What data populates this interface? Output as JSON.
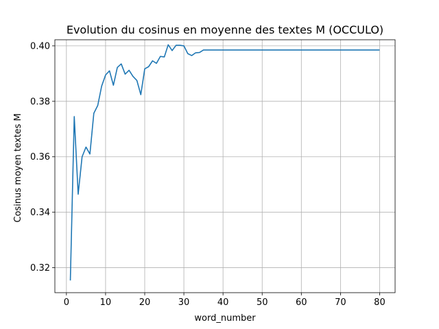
{
  "chart_data": {
    "type": "line",
    "title": "Evolution du cosinus en moyenne des textes M (OCCULO)",
    "xlabel": "word_number",
    "ylabel": "Cosinus moyen textes M",
    "xlim": [
      -2.95,
      83.95
    ],
    "ylim": [
      0.311,
      0.4022
    ],
    "xticks": [
      0,
      10,
      20,
      30,
      40,
      50,
      60,
      70,
      80
    ],
    "xtick_labels": [
      "0",
      "10",
      "20",
      "30",
      "40",
      "50",
      "60",
      "70",
      "80"
    ],
    "yticks": [
      0.32,
      0.34,
      0.36,
      0.38,
      0.4
    ],
    "ytick_labels": [
      "0.32",
      "0.34",
      "0.36",
      "0.38",
      "0.40"
    ],
    "grid": true,
    "line_color": "#1f77b4",
    "series": [
      {
        "x": [
          1,
          2,
          3,
          4,
          5,
          6,
          7,
          8,
          9,
          10,
          11,
          12,
          13,
          14,
          15,
          16,
          17,
          18,
          19,
          20,
          21,
          22,
          23,
          24,
          25,
          26,
          27,
          28,
          29,
          30,
          31,
          32,
          33,
          34,
          35,
          36,
          37,
          38,
          39,
          40,
          41,
          42,
          43,
          44,
          45,
          46,
          47,
          48,
          49,
          50,
          51,
          52,
          53,
          54,
          55,
          56,
          57,
          58,
          59,
          60,
          61,
          62,
          63,
          64,
          65,
          66,
          67,
          68,
          69,
          70,
          71,
          72,
          73,
          74,
          75,
          76,
          77,
          78,
          79,
          80
        ],
        "y": [
          0.3154,
          0.3745,
          0.3465,
          0.36,
          0.3635,
          0.361,
          0.3757,
          0.3785,
          0.3855,
          0.3895,
          0.391,
          0.3858,
          0.3922,
          0.3935,
          0.3898,
          0.3912,
          0.389,
          0.3875,
          0.3824,
          0.3917,
          0.3925,
          0.3946,
          0.3937,
          0.3962,
          0.396,
          0.4004,
          0.3983,
          0.4002,
          0.4002,
          0.4,
          0.3972,
          0.3965,
          0.3975,
          0.3976,
          0.3985,
          0.3985,
          0.3985,
          0.3985,
          0.3985,
          0.3985,
          0.3985,
          0.3985,
          0.3985,
          0.3985,
          0.3985,
          0.3985,
          0.3985,
          0.3985,
          0.3985,
          0.3985,
          0.3985,
          0.3985,
          0.3985,
          0.3985,
          0.3985,
          0.3985,
          0.3985,
          0.3985,
          0.3985,
          0.3985,
          0.3985,
          0.3985,
          0.3985,
          0.3985,
          0.3985,
          0.3985,
          0.3985,
          0.3985,
          0.3985,
          0.3985,
          0.3985,
          0.3985,
          0.3985,
          0.3985,
          0.3985,
          0.3985,
          0.3985,
          0.3985,
          0.3985,
          0.3985
        ]
      }
    ]
  }
}
